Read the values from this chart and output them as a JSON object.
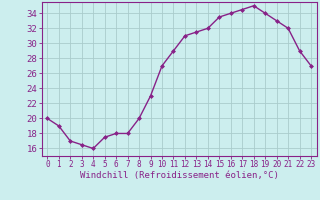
{
  "x": [
    0,
    1,
    2,
    3,
    4,
    5,
    6,
    7,
    8,
    9,
    10,
    11,
    12,
    13,
    14,
    15,
    16,
    17,
    18,
    19,
    20,
    21,
    22,
    23
  ],
  "y": [
    20,
    19,
    17,
    16.5,
    16,
    17.5,
    18,
    18,
    20,
    23,
    27,
    29,
    31,
    31.5,
    32,
    33.5,
    34,
    34.5,
    35,
    34,
    33,
    32,
    29,
    27
  ],
  "line_color": "#882288",
  "marker": "D",
  "marker_size": 2.0,
  "bg_color": "#cceeee",
  "grid_color": "#aacccc",
  "xlabel": "Windchill (Refroidissement éolien,°C)",
  "xlabel_fontsize": 6.5,
  "xlabel_color": "#882288",
  "ylabel_ticks": [
    16,
    18,
    20,
    22,
    24,
    26,
    28,
    30,
    32,
    34
  ],
  "ytick_fontsize": 6.5,
  "xtick_labels": [
    "0",
    "1",
    "2",
    "3",
    "4",
    "5",
    "6",
    "7",
    "8",
    "9",
    "10",
    "11",
    "12",
    "13",
    "14",
    "15",
    "16",
    "17",
    "18",
    "19",
    "20",
    "21",
    "22",
    "23"
  ],
  "xtick_fontsize": 5.5,
  "ylim": [
    15.0,
    35.5
  ],
  "xlim": [
    -0.5,
    23.5
  ],
  "tick_color": "#882288",
  "spine_color": "#882288",
  "linewidth": 1.0
}
